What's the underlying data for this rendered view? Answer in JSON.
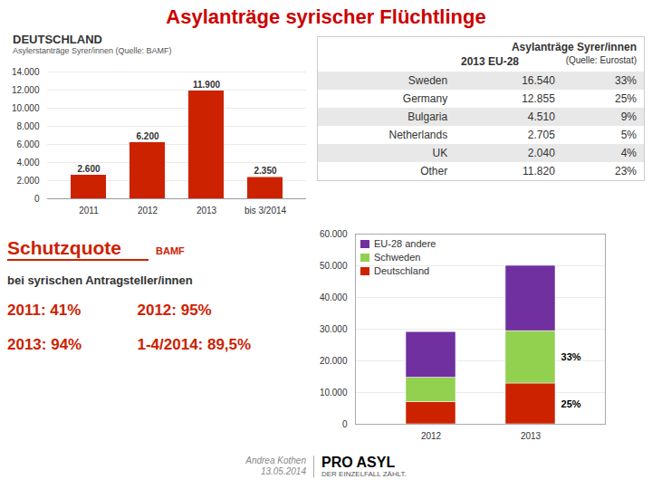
{
  "title": "Asylanträge syrischer Flüchtlinge",
  "color": "#cc0000",
  "chart_data": [
    {
      "type": "bar",
      "title": "DEUTSCHLAND",
      "subtitle": "Asylerstanträge Syrer/innen (Quelle: BAMF)",
      "categories": [
        "2011",
        "2012",
        "2013",
        "bis 3/2014"
      ],
      "values": [
        2600,
        6200,
        11900,
        2350
      ],
      "value_labels": [
        "2.600",
        "6.200",
        "11.900",
        "2.350"
      ],
      "data_labels": true,
      "color": "#cc2200",
      "ylim": [
        0,
        14000
      ],
      "yticks": [
        0,
        {
          "value": 2000,
          "label": "2.000"
        },
        {
          "value": 4000,
          "label": "4.000"
        },
        {
          "value": 6000,
          "label": "6.000"
        },
        {
          "value": 8000,
          "label": "8.000"
        },
        {
          "value": 10000,
          "label": "10.000"
        },
        {
          "value": 12000,
          "label": "12.000"
        },
        {
          "value": 14000,
          "label": "14.000"
        }
      ],
      "grid": true
    },
    {
      "type": "table",
      "title": "Asylanträge Syrer/innen",
      "subtitle": "2013 EU-28",
      "annotations": [
        "(Quelle: Eurostat)"
      ],
      "rows": [
        [
          "Sweden",
          "16.540",
          "33%"
        ],
        [
          "Germany",
          "12.855",
          "25%"
        ],
        [
          "Bulgaria",
          "4.510",
          "9%"
        ],
        [
          "Netherlands",
          "2.705",
          "5%"
        ],
        [
          "UK",
          "2.040",
          "4%"
        ],
        [
          "Other",
          "11.820",
          "23%"
        ]
      ]
    },
    {
      "type": "bar",
      "stacked": true,
      "categories": [
        "2012",
        "2013"
      ],
      "series": [
        {
          "name": "Deutschland",
          "color": "#cc2200",
          "values": [
            7000,
            12855
          ]
        },
        {
          "name": "Schweden",
          "color": "#92d050",
          "values": [
            7700,
            16540
          ]
        },
        {
          "name": "EU-28 andere",
          "color": "#7030a0",
          "values": [
            14400,
            20600
          ]
        }
      ],
      "ylim": [
        0,
        60000
      ],
      "yticks": [
        0,
        {
          "value": 10000,
          "label": "10.000"
        },
        {
          "value": 20000,
          "label": "20.000"
        },
        {
          "value": 30000,
          "label": "30.000"
        },
        {
          "value": 40000,
          "label": "40.000"
        },
        {
          "value": 50000,
          "label": "50.000"
        },
        {
          "value": 60000,
          "label": "60.000"
        }
      ],
      "grid": true,
      "legend": "upper left",
      "annotations": [
        {
          "text": "25%",
          "category": "2013",
          "series": "Deutschland"
        },
        {
          "text": "33%",
          "category": "2013",
          "series": "Schweden"
        }
      ]
    },
    {
      "type": "text",
      "title": "Schutzquote",
      "subtitle": "BAMF",
      "color": "#cc2200",
      "annotations": [
        "bei syrischen Antragsteller/innen",
        "2011: 41%",
        "2012: 95%",
        "2013: 94%",
        "1-4/2014: 89,5%"
      ]
    },
    {
      "type": "text",
      "annotations": [
        "Andrea Kothen",
        "13.05.2014",
        "PRO ASYL",
        "DER EINZELFALL ZÄHLT."
      ]
    }
  ]
}
